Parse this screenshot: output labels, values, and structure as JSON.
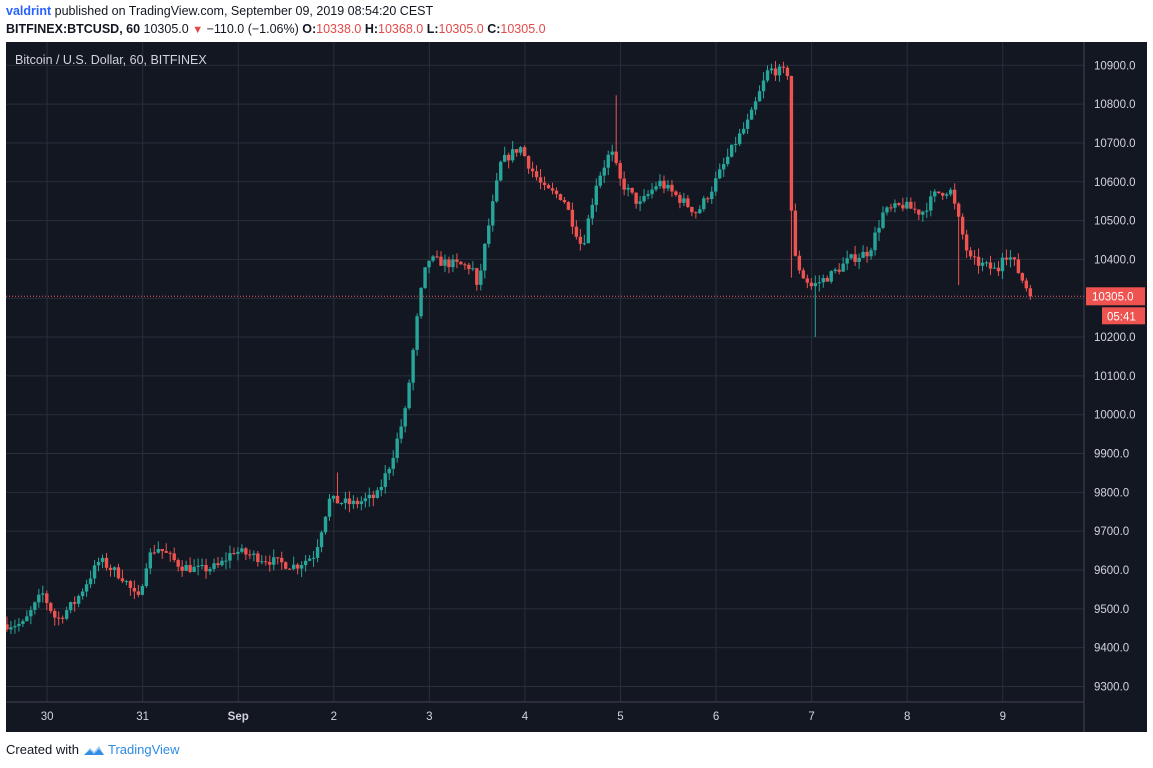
{
  "header": {
    "author": "valdrint",
    "published_text": "published on TradingView.com, September 09, 2019 08:54:20 CEST",
    "symbol": "BITFINEX:BTCUSD, 60",
    "last": "10305.0",
    "change": "−110.0 (−1.06%)",
    "o_label": "O:",
    "o_value": "10338.0",
    "h_label": "H:",
    "h_value": "10368.0",
    "l_label": "L:",
    "l_value": "10305.0",
    "c_label": "C:",
    "c_value": "10305.0"
  },
  "footer": {
    "created_with": "Created with",
    "brand": "TradingView"
  },
  "colors": {
    "background": "#131722",
    "grid": "#2a2e39",
    "up": "#26a69a",
    "down": "#ef5350",
    "axis_text": "#d1d4dc"
  },
  "chart_data": {
    "type": "candlestick",
    "title": "Bitcoin / U.S. Dollar, 60, BITFINEX",
    "x_ticks": [
      "30",
      "31",
      "Sep",
      "2",
      "3",
      "4",
      "5",
      "6",
      "7",
      "8",
      "9"
    ],
    "y_ticks": [
      "10900.0",
      "10800.0",
      "10700.0",
      "10600.0",
      "10500.0",
      "10400.0",
      "10300.0",
      "10200.0",
      "10100.0",
      "10000.0",
      "9900.0",
      "9800.0",
      "9700.0",
      "9600.0",
      "9500.0",
      "9400.0",
      "9300.0"
    ],
    "ylim": [
      9260,
      10960
    ],
    "last_price": 10305.0,
    "last_price_label": "10305.0",
    "countdown": "05:41",
    "grid": true,
    "candles_note": "hourly path, approximate",
    "path": [
      {
        "day": 29.75,
        "price": 9460
      },
      {
        "day": 29.95,
        "price": 9540
      },
      {
        "day": 30.1,
        "price": 9470
      },
      {
        "day": 30.3,
        "price": 9520
      },
      {
        "day": 30.55,
        "price": 9625
      },
      {
        "day": 30.8,
        "price": 9580
      },
      {
        "day": 30.95,
        "price": 9520
      },
      {
        "day": 31.05,
        "price": 9630
      },
      {
        "day": 31.15,
        "price": 9660
      },
      {
        "day": 31.4,
        "price": 9610
      },
      {
        "day": 31.6,
        "price": 9600
      },
      {
        "day": 31.8,
        "price": 9610
      },
      {
        "day": 31.95,
        "price": 9650
      },
      {
        "day": 32.1,
        "price": 9640
      },
      {
        "day": 32.4,
        "price": 9620
      },
      {
        "day": 32.6,
        "price": 9610
      },
      {
        "day": 32.8,
        "price": 9640
      },
      {
        "day": 32.95,
        "price": 9780
      },
      {
        "day": 33.2,
        "price": 9770
      },
      {
        "day": 33.45,
        "price": 9790
      },
      {
        "day": 33.6,
        "price": 9880
      },
      {
        "day": 33.75,
        "price": 10010
      },
      {
        "day": 33.9,
        "price": 10300
      },
      {
        "day": 33.98,
        "price": 10400
      },
      {
        "day": 34.2,
        "price": 10390
      },
      {
        "day": 34.45,
        "price": 10380
      },
      {
        "day": 34.5,
        "price": 10320
      },
      {
        "day": 34.6,
        "price": 10460
      },
      {
        "day": 34.75,
        "price": 10650
      },
      {
        "day": 34.95,
        "price": 10690
      },
      {
        "day": 35.05,
        "price": 10640
      },
      {
        "day": 35.2,
        "price": 10580
      },
      {
        "day": 35.4,
        "price": 10560
      },
      {
        "day": 35.6,
        "price": 10430
      },
      {
        "day": 35.75,
        "price": 10600
      },
      {
        "day": 35.9,
        "price": 10680
      },
      {
        "day": 36.0,
        "price": 10600
      },
      {
        "day": 36.2,
        "price": 10540
      },
      {
        "day": 36.4,
        "price": 10600
      },
      {
        "day": 36.6,
        "price": 10560
      },
      {
        "day": 36.8,
        "price": 10520
      },
      {
        "day": 36.95,
        "price": 10580
      },
      {
        "day": 37.2,
        "price": 10700
      },
      {
        "day": 37.35,
        "price": 10760
      },
      {
        "day": 37.55,
        "price": 10890
      },
      {
        "day": 37.75,
        "price": 10880
      },
      {
        "day": 37.8,
        "price": 10420
      },
      {
        "day": 37.9,
        "price": 10360
      },
      {
        "day": 38.0,
        "price": 10330
      },
      {
        "day": 38.2,
        "price": 10360
      },
      {
        "day": 38.4,
        "price": 10400
      },
      {
        "day": 38.6,
        "price": 10420
      },
      {
        "day": 38.75,
        "price": 10520
      },
      {
        "day": 38.95,
        "price": 10540
      },
      {
        "day": 39.15,
        "price": 10520
      },
      {
        "day": 39.3,
        "price": 10570
      },
      {
        "day": 39.45,
        "price": 10580
      },
      {
        "day": 39.55,
        "price": 10490
      },
      {
        "day": 39.65,
        "price": 10400
      },
      {
        "day": 39.85,
        "price": 10380
      },
      {
        "day": 39.95,
        "price": 10370
      },
      {
        "day": 40.0,
        "price": 10420
      },
      {
        "day": 40.1,
        "price": 10400
      },
      {
        "day": 40.2,
        "price": 10350
      },
      {
        "day": 40.3,
        "price": 10305
      }
    ]
  }
}
